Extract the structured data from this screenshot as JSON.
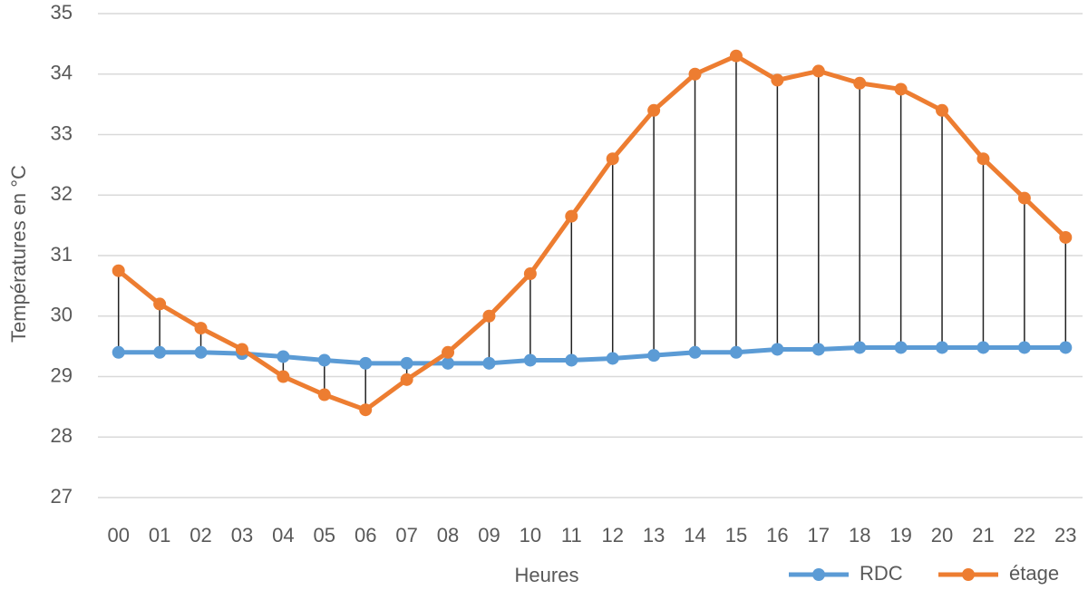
{
  "chart_data": {
    "type": "line",
    "x_label": "Heures",
    "y_label": "Températures en °C",
    "categories": [
      "00",
      "01",
      "02",
      "03",
      "04",
      "05",
      "06",
      "07",
      "08",
      "09",
      "10",
      "11",
      "12",
      "13",
      "14",
      "15",
      "16",
      "17",
      "18",
      "19",
      "20",
      "21",
      "22",
      "23"
    ],
    "series": [
      {
        "name": "RDC",
        "color": "#5b9bd5",
        "values": [
          29.4,
          29.4,
          29.4,
          29.38,
          29.33,
          29.27,
          29.22,
          29.22,
          29.22,
          29.22,
          29.27,
          29.27,
          29.3,
          29.35,
          29.4,
          29.4,
          29.45,
          29.45,
          29.48,
          29.48,
          29.48,
          29.48,
          29.48,
          29.48
        ]
      },
      {
        "name": "étage",
        "color": "#ed7d31",
        "values": [
          30.75,
          30.2,
          29.8,
          29.45,
          29.0,
          28.7,
          28.45,
          28.95,
          29.4,
          30.0,
          30.7,
          31.65,
          32.6,
          33.4,
          34.0,
          34.3,
          33.9,
          34.05,
          33.85,
          33.75,
          33.4,
          32.6,
          31.95,
          31.3
        ]
      }
    ],
    "ylim": [
      27,
      35
    ],
    "yticks": [
      27,
      28,
      29,
      30,
      31,
      32,
      33,
      34,
      35
    ],
    "grid": true,
    "high_low_lines": true,
    "legend": "bottom-right"
  }
}
